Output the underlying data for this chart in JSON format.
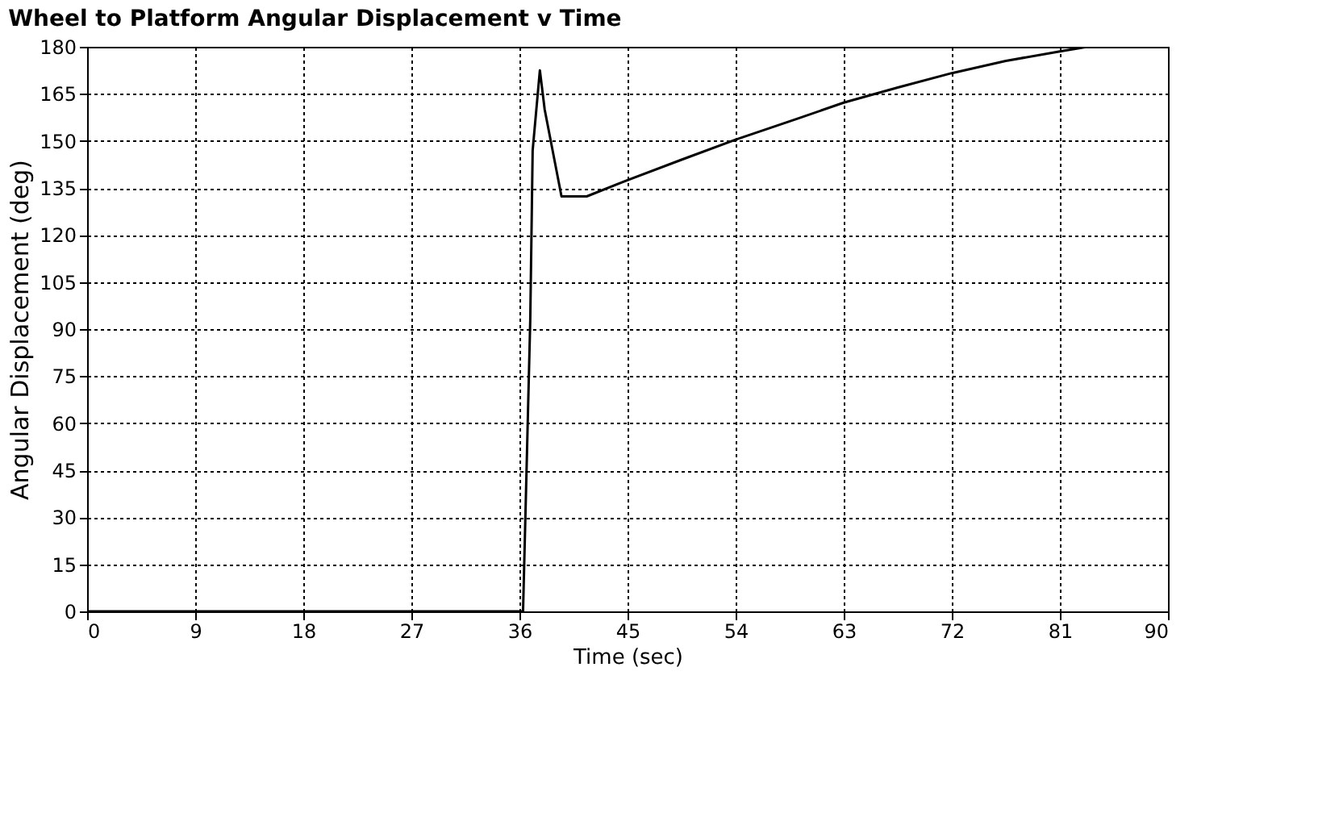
{
  "chart_data": {
    "type": "line",
    "title": "Wheel to Platform Angular Displacement v Time",
    "xlabel": "Time (sec)",
    "ylabel": "Angular Displacement (deg)",
    "x": [
      0,
      36.3,
      36.9,
      37.1,
      37.7,
      38.1,
      39.5,
      41.6,
      45,
      49.5,
      54,
      59.1,
      63,
      67.5,
      72,
      76.5,
      81,
      83.3
    ],
    "series": [
      {
        "color": "#000000",
        "values": [
          0,
          0,
          93,
          147,
          172.5,
          160,
          132.3,
          132.3,
          137.5,
          144,
          150.4,
          157,
          162.2,
          167,
          171.6,
          175.5,
          178.5,
          180
        ]
      }
    ],
    "xlim": [
      0,
      90
    ],
    "xticks": [
      0,
      9,
      18,
      27,
      36,
      45,
      54,
      63,
      72,
      81,
      90
    ],
    "ylim": [
      0,
      180
    ],
    "yticks": [
      0,
      15,
      30,
      45,
      60,
      75,
      90,
      105,
      120,
      135,
      150,
      165,
      180
    ],
    "grid": true,
    "marker": "none",
    "line_style": "solid"
  }
}
